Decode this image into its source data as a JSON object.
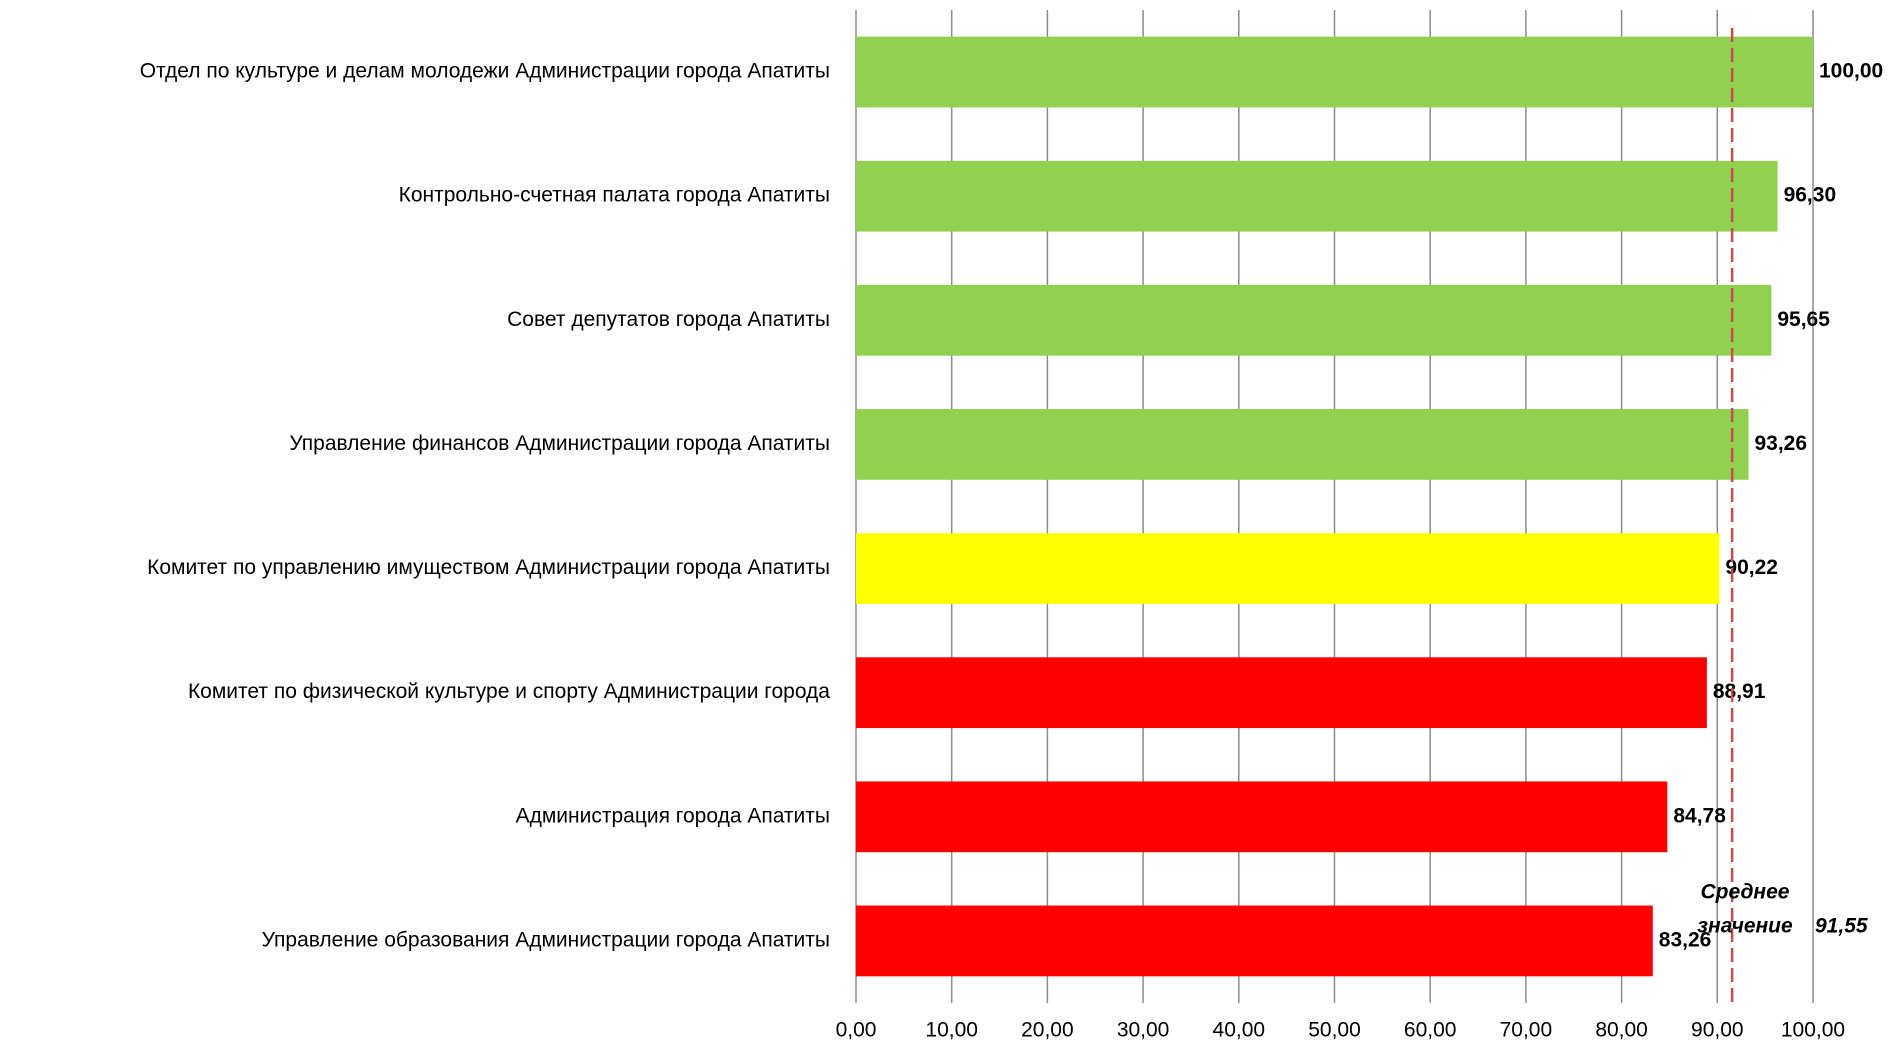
{
  "chart_data": {
    "type": "barh",
    "categories": [
      "Отдел по культуре и делам молодежи Администрации города Апатиты",
      "Контрольно-счетная палата города Апатиты",
      "Совет депутатов города Апатиты",
      "Управление финансов Администрации города Апатиты",
      "Комитет по управлению имуществом Администрации города Апатиты",
      "Комитет по физической культуре и спорту Администрации города",
      "Администрация города Апатиты",
      "Управление образования Администрации города Апатиты"
    ],
    "values": [
      100.0,
      96.3,
      95.65,
      93.26,
      90.22,
      88.91,
      84.78,
      83.26
    ],
    "value_labels": [
      "100,00",
      "96,30",
      "95,65",
      "93,26",
      "90,22",
      "88,91",
      "84,78",
      "83,26"
    ],
    "colors": [
      "#92d050",
      "#92d050",
      "#92d050",
      "#92d050",
      "#ffff00",
      "#ff0000",
      "#ff0000",
      "#ff0000"
    ],
    "xlim": [
      0,
      100
    ],
    "xticks": [
      {
        "value": 0,
        "label": "0,00"
      },
      {
        "value": 10,
        "label": "10,00"
      },
      {
        "value": 20,
        "label": "20,00"
      },
      {
        "value": 30,
        "label": "30,00"
      },
      {
        "value": 40,
        "label": "40,00"
      },
      {
        "value": 50,
        "label": "50,00"
      },
      {
        "value": 60,
        "label": "60,00"
      },
      {
        "value": 70,
        "label": "70,00"
      },
      {
        "value": 80,
        "label": "80,00"
      },
      {
        "value": 90,
        "label": "90,00"
      },
      {
        "value": 100,
        "label": "100,00"
      }
    ],
    "grid": true,
    "reference_line": {
      "value": 91.55,
      "value_label": "91,55",
      "label_lines": [
        "Среднее",
        "значение"
      ],
      "color": "#c0504d"
    }
  }
}
